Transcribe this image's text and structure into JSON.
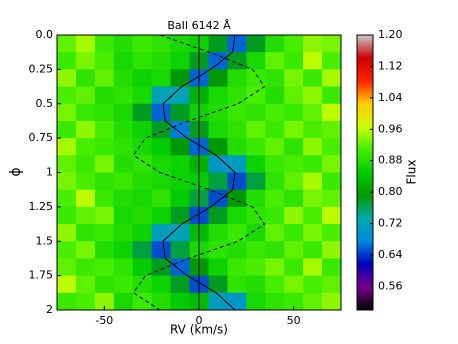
{
  "chart_data": {
    "type": "heatmap",
    "title": "BaII 6142 Å",
    "x_label": "RV (km/s)",
    "y_label": "ϕ",
    "colorbar_label": "Flux",
    "xlim": [
      -75,
      75
    ],
    "xticks": [
      -50,
      0,
      50
    ],
    "ylim": [
      0,
      2
    ],
    "yticks": [
      {
        "value": 0,
        "label": "0.0"
      },
      0.25,
      0.5,
      0.75,
      1,
      1.25,
      1.5,
      1.75,
      2
    ],
    "clim": [
      0.5,
      1.2
    ],
    "cticks": [
      0.56,
      0.64,
      0.72,
      {
        "value": 0.8,
        "label": "0.80"
      },
      0.88,
      0.96,
      1.04,
      1.12,
      {
        "value": 1.2,
        "label": "1.20"
      }
    ],
    "colormap": [
      "#000000",
      "#770088",
      "#0000bb",
      "#0088dd",
      "#00aaaa",
      "#009900",
      "#00cc00",
      "#44ee00",
      "#ccff00",
      "#ffcc00",
      "#ff2200",
      "#cc0000",
      "#cccccc"
    ],
    "rv": [
      -70,
      -60,
      -50,
      -40,
      -30,
      -20,
      -10,
      0,
      10,
      20,
      30,
      40,
      50,
      60,
      70
    ],
    "phase": [
      0.0625,
      0.1875,
      0.3125,
      0.4375,
      0.5625,
      0.6875,
      0.8125,
      0.9375,
      1.0625,
      1.1875,
      1.3125,
      1.4375,
      1.5625,
      1.6875,
      1.8125,
      1.9375
    ],
    "values": [
      [
        0.92,
        0.95,
        0.9,
        0.88,
        0.9,
        0.89,
        0.87,
        0.86,
        0.78,
        0.66,
        0.78,
        0.88,
        0.91,
        0.94,
        0.93
      ],
      [
        0.9,
        0.93,
        0.91,
        0.87,
        0.89,
        0.88,
        0.86,
        0.78,
        0.66,
        0.78,
        0.87,
        0.92,
        0.9,
        0.96,
        0.91
      ],
      [
        0.94,
        0.89,
        0.92,
        0.88,
        0.86,
        0.87,
        0.79,
        0.66,
        0.79,
        0.88,
        0.9,
        0.89,
        0.93,
        0.9,
        0.95
      ],
      [
        0.91,
        0.92,
        0.88,
        0.89,
        0.87,
        0.72,
        0.72,
        0.82,
        0.87,
        0.89,
        0.91,
        0.88,
        0.92,
        0.94,
        0.9
      ],
      [
        0.93,
        0.9,
        0.89,
        0.87,
        0.78,
        0.66,
        0.78,
        0.86,
        0.88,
        0.9,
        0.89,
        0.91,
        0.9,
        0.92,
        0.96
      ],
      [
        0.9,
        0.94,
        0.91,
        0.88,
        0.86,
        0.78,
        0.67,
        0.78,
        0.87,
        0.89,
        0.92,
        0.9,
        0.93,
        0.91,
        0.92
      ],
      [
        0.95,
        0.91,
        0.9,
        0.89,
        0.87,
        0.85,
        0.79,
        0.66,
        0.79,
        0.88,
        0.9,
        0.92,
        0.89,
        0.94,
        0.91
      ],
      [
        0.92,
        0.9,
        0.93,
        0.88,
        0.89,
        0.87,
        0.86,
        0.82,
        0.7,
        0.71,
        0.86,
        0.9,
        0.91,
        0.9,
        0.93
      ],
      [
        0.93,
        0.91,
        0.89,
        0.9,
        0.88,
        0.87,
        0.86,
        0.85,
        0.77,
        0.65,
        0.77,
        0.89,
        0.92,
        0.95,
        0.9
      ],
      [
        0.91,
        0.96,
        0.9,
        0.88,
        0.87,
        0.89,
        0.85,
        0.77,
        0.65,
        0.79,
        0.88,
        0.91,
        0.89,
        0.93,
        0.92
      ],
      [
        0.9,
        0.92,
        0.93,
        0.87,
        0.88,
        0.86,
        0.78,
        0.65,
        0.78,
        0.87,
        0.89,
        0.9,
        0.94,
        0.91,
        0.96
      ],
      [
        0.94,
        0.89,
        0.9,
        0.88,
        0.86,
        0.71,
        0.72,
        0.83,
        0.88,
        0.9,
        0.87,
        0.92,
        0.9,
        0.93,
        0.91
      ],
      [
        0.91,
        0.93,
        0.88,
        0.86,
        0.77,
        0.65,
        0.77,
        0.87,
        0.89,
        0.88,
        0.9,
        0.89,
        0.92,
        0.9,
        0.94
      ],
      [
        0.92,
        0.9,
        0.91,
        0.89,
        0.85,
        0.78,
        0.66,
        0.79,
        0.86,
        0.9,
        0.91,
        0.93,
        0.9,
        0.95,
        0.9
      ],
      [
        0.96,
        0.92,
        0.89,
        0.9,
        0.88,
        0.86,
        0.78,
        0.65,
        0.78,
        0.89,
        0.88,
        0.91,
        0.93,
        0.91,
        0.92
      ],
      [
        0.9,
        0.91,
        0.94,
        0.87,
        0.9,
        0.88,
        0.85,
        0.83,
        0.71,
        0.7,
        0.87,
        0.89,
        0.9,
        0.92,
        0.94
      ]
    ],
    "curve_phase": [
      0,
      0.125,
      0.25,
      0.375,
      0.5,
      0.625,
      0.75,
      0.875,
      1,
      1.125,
      1.25,
      1.375,
      1.5,
      1.625,
      1.75,
      1.875,
      2
    ],
    "solid_curve": [
      19.0,
      17.8,
      6.2,
      -9.1,
      -19.0,
      -17.8,
      -6.2,
      9.1,
      19.0,
      17.8,
      6.2,
      -9.1,
      -19.0,
      -17.8,
      -6.2,
      9.1,
      19.0
    ],
    "dashed_curve": [
      -20.6,
      5.5,
      28.3,
      34.6,
      20.6,
      -5.5,
      -28.3,
      -34.6,
      -20.6,
      5.5,
      28.3,
      34.6,
      20.6,
      -5.5,
      -28.3,
      -34.6,
      -20.6
    ]
  }
}
